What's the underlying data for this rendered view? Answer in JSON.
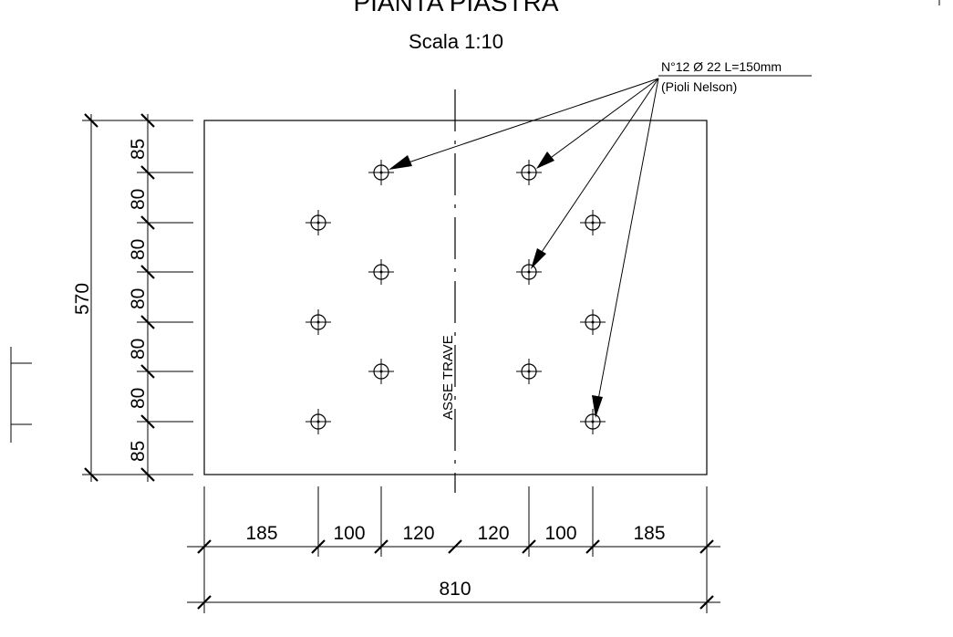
{
  "title": "PIANTA PIASTRA",
  "scale": "Scala 1:10",
  "note": {
    "line1": "N°12 Ø 22  L=150mm",
    "line2": "(Pioli Nelson)"
  },
  "axis_label": "ASSE TRAVE",
  "vertical_dimensions": {
    "total": "570",
    "segments": [
      "85",
      "80",
      "80",
      "80",
      "80",
      "80",
      "85"
    ]
  },
  "horizontal_dimensions": {
    "total": "810",
    "segments": [
      "185",
      "100",
      "120",
      "120",
      "100",
      "185"
    ]
  }
}
